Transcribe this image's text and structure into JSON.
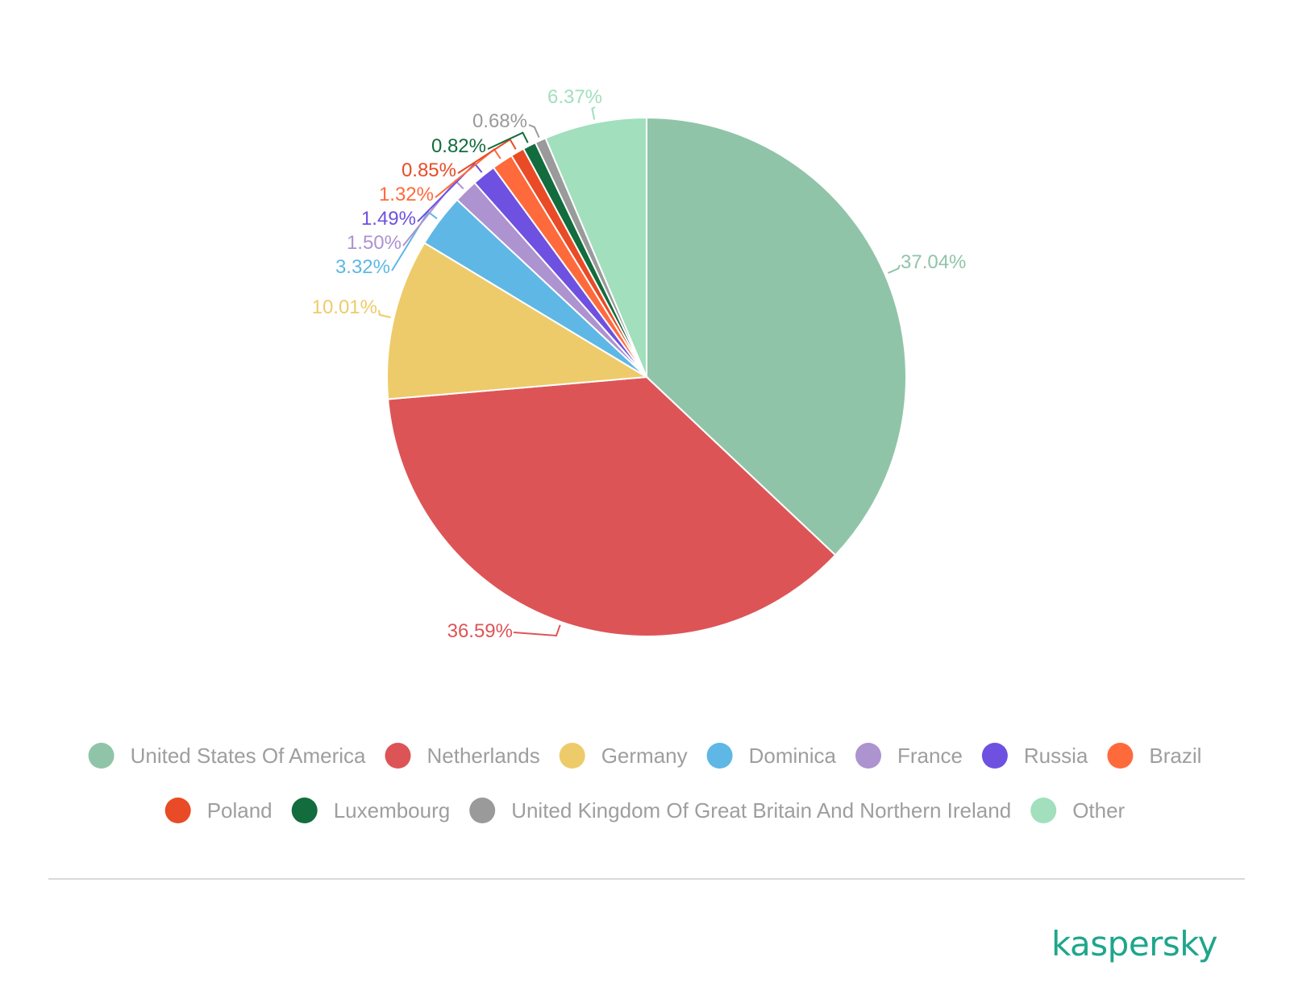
{
  "chart_data": {
    "type": "pie",
    "title": "",
    "start_angle_deg": 0,
    "direction": "clockwise",
    "slices": [
      {
        "name": "United States Of America",
        "value": 37.04,
        "label": "37.04%",
        "color": "#90c4a8"
      },
      {
        "name": "Netherlands",
        "value": 36.59,
        "label": "36.59%",
        "color": "#dd5457"
      },
      {
        "name": "Germany",
        "value": 10.01,
        "label": "10.01%",
        "color": "#eecb6a"
      },
      {
        "name": "Dominica",
        "value": 3.32,
        "label": "3.32%",
        "color": "#5fb7e5"
      },
      {
        "name": "France",
        "value": 1.5,
        "label": "1.50%",
        "color": "#ad93cf"
      },
      {
        "name": "Russia",
        "value": 1.49,
        "label": "1.49%",
        "color": "#6e51e0"
      },
      {
        "name": "Brazil",
        "value": 1.32,
        "label": "1.32%",
        "color": "#ff6a3c"
      },
      {
        "name": "Poland",
        "value": 0.85,
        "label": "0.85%",
        "color": "#e94b26"
      },
      {
        "name": "Luxembourg",
        "value": 0.82,
        "label": "0.82%",
        "color": "#126c3d"
      },
      {
        "name": "United Kingdom Of Great Britain And Northern Ireland",
        "value": 0.68,
        "label": "0.68%",
        "color": "#9a9a9a"
      },
      {
        "name": "Other",
        "value": 6.37,
        "label": "6.37%",
        "color": "#a1dfbd"
      }
    ],
    "legend_placement": "bottom"
  },
  "branding": {
    "logo_text": "kaspersky",
    "logo_color": "#1ea68b"
  },
  "divider_color": "#d9d9d9"
}
